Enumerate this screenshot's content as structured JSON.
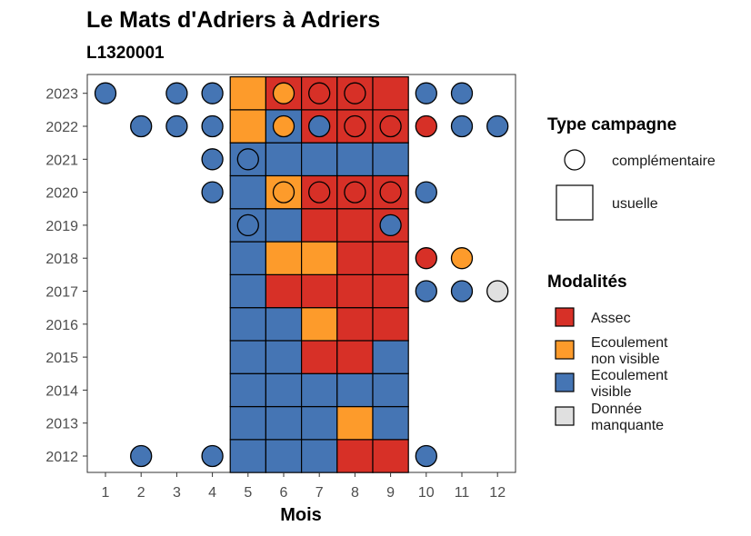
{
  "chart_data": {
    "type": "heatmap",
    "title": "Le Mats d'Adriers à Adriers",
    "subtitle": "L1320001",
    "xlabel": "Mois",
    "ylabel": "",
    "x_ticks": [
      "1",
      "2",
      "3",
      "4",
      "5",
      "6",
      "7",
      "8",
      "9",
      "10",
      "11",
      "12"
    ],
    "y_ticks": [
      "2012",
      "2013",
      "2014",
      "2015",
      "2016",
      "2017",
      "2018",
      "2019",
      "2020",
      "2021",
      "2022",
      "2023"
    ],
    "legend_type": {
      "title": "Type campagne",
      "items": [
        {
          "key": "complementaire",
          "label": "complémentaire"
        },
        {
          "key": "usuelle",
          "label": "usuelle"
        }
      ]
    },
    "legend_modalites": {
      "title": "Modalités",
      "items": [
        {
          "key": "assec",
          "lines": [
            "Assec"
          ],
          "color": "#d73027"
        },
        {
          "key": "non_visible",
          "lines": [
            "Ecoulement",
            "non visible"
          ],
          "color": "#fd9b2b"
        },
        {
          "key": "visible",
          "lines": [
            "Ecoulement",
            "visible"
          ],
          "color": "#4575b4"
        },
        {
          "key": "manquante",
          "lines": [
            "Donnée",
            "manquante"
          ],
          "color": "#e0e0e0"
        }
      ]
    },
    "usuelle": [
      {
        "year": 2012,
        "months": {
          "5": "visible",
          "6": "visible",
          "7": "visible",
          "8": "assec",
          "9": "assec"
        }
      },
      {
        "year": 2013,
        "months": {
          "5": "visible",
          "6": "visible",
          "7": "visible",
          "8": "non_visible",
          "9": "visible"
        }
      },
      {
        "year": 2014,
        "months": {
          "5": "visible",
          "6": "visible",
          "7": "visible",
          "8": "visible",
          "9": "visible"
        }
      },
      {
        "year": 2015,
        "months": {
          "5": "visible",
          "6": "visible",
          "7": "assec",
          "8": "assec",
          "9": "visible"
        }
      },
      {
        "year": 2016,
        "months": {
          "5": "visible",
          "6": "visible",
          "7": "non_visible",
          "8": "assec",
          "9": "assec"
        }
      },
      {
        "year": 2017,
        "months": {
          "5": "visible",
          "6": "assec",
          "7": "assec",
          "8": "assec",
          "9": "assec"
        }
      },
      {
        "year": 2018,
        "months": {
          "5": "visible",
          "6": "non_visible",
          "7": "non_visible",
          "8": "assec",
          "9": "assec"
        }
      },
      {
        "year": 2019,
        "months": {
          "5": "visible",
          "6": "visible",
          "7": "assec",
          "8": "assec",
          "9": "assec"
        }
      },
      {
        "year": 2020,
        "months": {
          "5": "visible",
          "6": "non_visible",
          "7": "assec",
          "8": "assec",
          "9": "assec"
        }
      },
      {
        "year": 2021,
        "months": {
          "5": "visible",
          "6": "visible",
          "7": "visible",
          "8": "visible",
          "9": "visible"
        }
      },
      {
        "year": 2022,
        "months": {
          "5": "non_visible",
          "6": "visible",
          "7": "assec",
          "8": "assec",
          "9": "assec"
        }
      },
      {
        "year": 2023,
        "months": {
          "5": "non_visible",
          "6": "assec",
          "7": "assec",
          "8": "assec",
          "9": "assec"
        }
      }
    ],
    "complementaire": [
      {
        "year": 2023,
        "month": 1,
        "value": "visible"
      },
      {
        "year": 2023,
        "month": 3,
        "value": "visible"
      },
      {
        "year": 2023,
        "month": 4,
        "value": "visible"
      },
      {
        "year": 2023,
        "month": 6,
        "value": "non_visible"
      },
      {
        "year": 2023,
        "month": 7,
        "value": "assec"
      },
      {
        "year": 2023,
        "month": 8,
        "value": "assec"
      },
      {
        "year": 2023,
        "month": 10,
        "value": "visible"
      },
      {
        "year": 2023,
        "month": 11,
        "value": "visible"
      },
      {
        "year": 2022,
        "month": 2,
        "value": "visible"
      },
      {
        "year": 2022,
        "month": 3,
        "value": "visible"
      },
      {
        "year": 2022,
        "month": 4,
        "value": "visible"
      },
      {
        "year": 2022,
        "month": 6,
        "value": "non_visible"
      },
      {
        "year": 2022,
        "month": 7,
        "value": "visible"
      },
      {
        "year": 2022,
        "month": 8,
        "value": "assec"
      },
      {
        "year": 2022,
        "month": 9,
        "value": "assec"
      },
      {
        "year": 2022,
        "month": 10,
        "value": "assec"
      },
      {
        "year": 2022,
        "month": 11,
        "value": "visible"
      },
      {
        "year": 2022,
        "month": 12,
        "value": "visible"
      },
      {
        "year": 2021,
        "month": 4,
        "value": "visible"
      },
      {
        "year": 2021,
        "month": 5,
        "value": "visible"
      },
      {
        "year": 2020,
        "month": 4,
        "value": "visible"
      },
      {
        "year": 2020,
        "month": 6,
        "value": "non_visible"
      },
      {
        "year": 2020,
        "month": 7,
        "value": "assec"
      },
      {
        "year": 2020,
        "month": 8,
        "value": "assec"
      },
      {
        "year": 2020,
        "month": 9,
        "value": "assec"
      },
      {
        "year": 2020,
        "month": 10,
        "value": "visible"
      },
      {
        "year": 2019,
        "month": 5,
        "value": "visible"
      },
      {
        "year": 2019,
        "month": 9,
        "value": "visible"
      },
      {
        "year": 2018,
        "month": 10,
        "value": "assec"
      },
      {
        "year": 2018,
        "month": 11,
        "value": "non_visible"
      },
      {
        "year": 2017,
        "month": 10,
        "value": "visible"
      },
      {
        "year": 2017,
        "month": 11,
        "value": "visible"
      },
      {
        "year": 2017,
        "month": 12,
        "value": "manquante"
      },
      {
        "year": 2012,
        "month": 2,
        "value": "visible"
      },
      {
        "year": 2012,
        "month": 4,
        "value": "visible"
      },
      {
        "year": 2012,
        "month": 10,
        "value": "visible"
      }
    ]
  }
}
